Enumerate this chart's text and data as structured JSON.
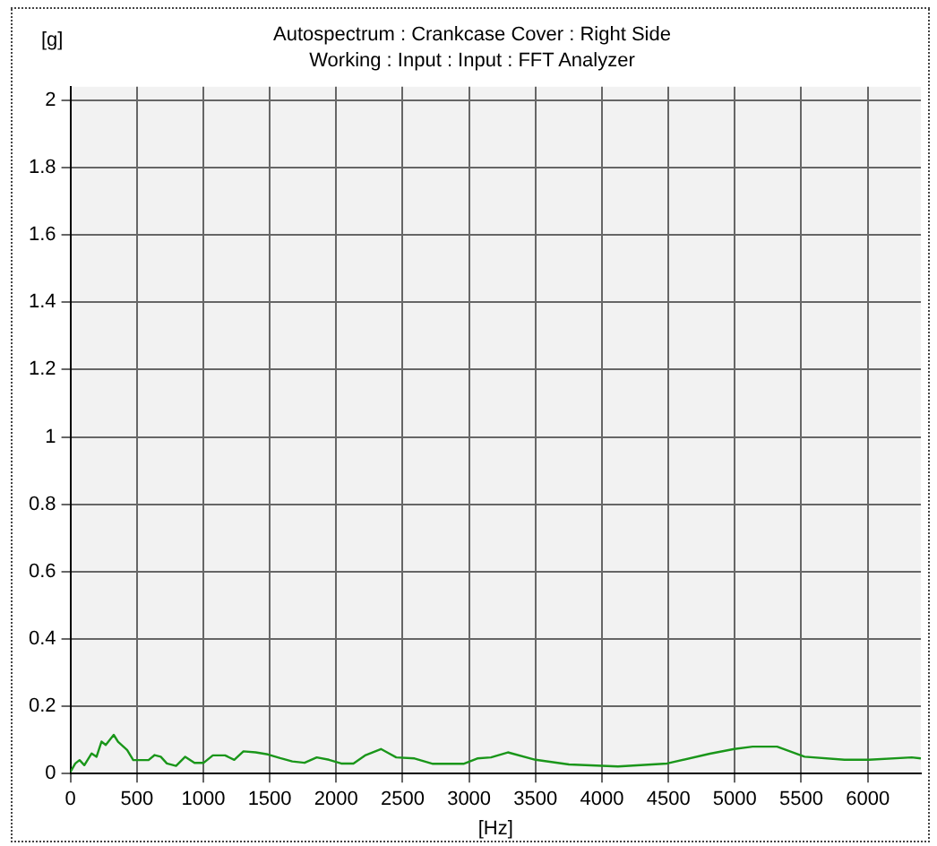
{
  "chart_data": {
    "type": "line",
    "title": "Autospectrum : Crankcase Cover : Right Side",
    "subtitle": "Working : Input : Input : FFT Analyzer",
    "xlabel": "[Hz]",
    "ylabel": "[g]",
    "x": [
      0,
      37,
      69,
      105,
      160,
      197,
      234,
      266,
      326,
      358,
      427,
      473,
      588,
      634,
      680,
      726,
      795,
      864,
      934,
      1003,
      1072,
      1164,
      1233,
      1302,
      1394,
      1486,
      1578,
      1670,
      1762,
      1854,
      1946,
      2038,
      2130,
      2222,
      2337,
      2383,
      2452,
      2590,
      2728,
      2958,
      3062,
      3165,
      3292,
      3500,
      3752,
      4121,
      4490,
      4812,
      4996,
      5134,
      5318,
      5525,
      5825,
      6009,
      6331,
      6400
    ],
    "series": [
      {
        "color": "#1a961a",
        "values": [
          0.005,
          0.03,
          0.04,
          0.025,
          0.06,
          0.05,
          0.095,
          0.085,
          0.115,
          0.095,
          0.07,
          0.04,
          0.04,
          0.055,
          0.05,
          0.03,
          0.023,
          0.05,
          0.032,
          0.032,
          0.054,
          0.054,
          0.041,
          0.066,
          0.063,
          0.057,
          0.046,
          0.036,
          0.032,
          0.048,
          0.041,
          0.03,
          0.03,
          0.055,
          0.073,
          0.063,
          0.048,
          0.045,
          0.029,
          0.029,
          0.045,
          0.048,
          0.063,
          0.041,
          0.027,
          0.021,
          0.03,
          0.059,
          0.073,
          0.08,
          0.08,
          0.05,
          0.041,
          0.041,
          0.048,
          0.045
        ]
      }
    ],
    "xlim": [
      0,
      6400
    ],
    "xticks": [
      0,
      500,
      1000,
      1500,
      2000,
      2500,
      3000,
      3500,
      4000,
      4500,
      5000,
      5500,
      6000
    ],
    "ylim": [
      0,
      2.04
    ],
    "yticks": [
      0,
      0.2,
      0.4,
      0.6,
      0.8,
      1,
      1.2,
      1.4,
      1.6,
      1.8,
      2
    ],
    "grid": true,
    "legend": false,
    "marker": "none",
    "line_style": "solid"
  }
}
